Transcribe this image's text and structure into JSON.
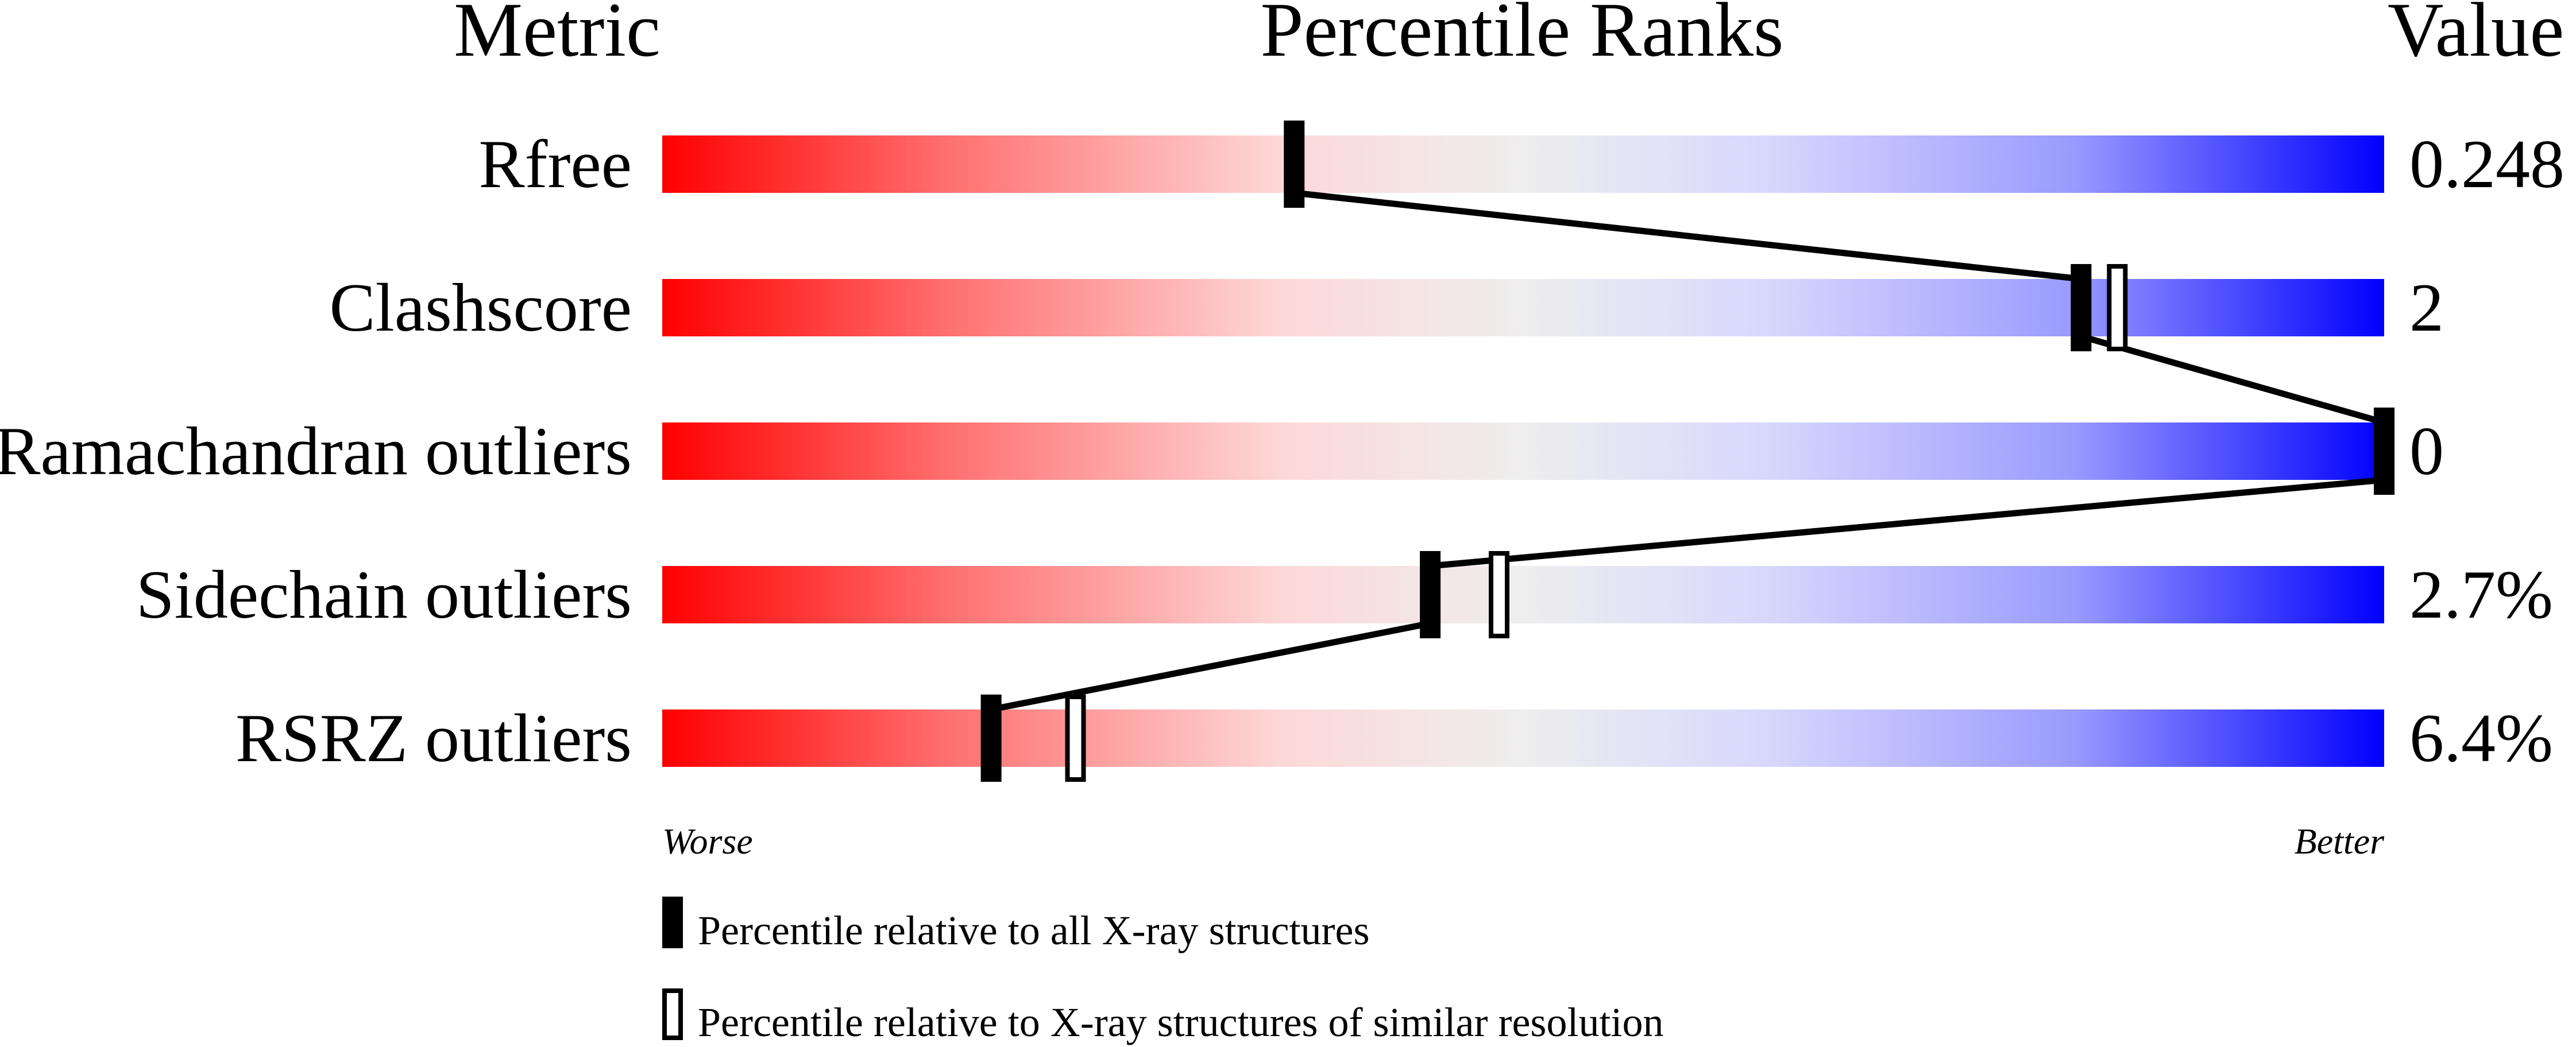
{
  "chart_data": {
    "type": "percentile-slider",
    "headers": {
      "metric": "Metric",
      "percentile": "Percentile Ranks",
      "value": "Value"
    },
    "xlim": [
      0,
      100
    ],
    "rows": [
      {
        "metric": "Rfree",
        "value": "0.248",
        "percentile_all": 36.7,
        "percentile_similar": null
      },
      {
        "metric": "Clashscore",
        "value": "2",
        "percentile_all": 82.4,
        "percentile_similar": 84.5
      },
      {
        "metric": "Ramachandran outliers",
        "value": "0",
        "percentile_all": 100,
        "percentile_similar": 100
      },
      {
        "metric": "Sidechain outliers",
        "value": "2.7%",
        "percentile_all": 44.6,
        "percentile_similar": 48.6
      },
      {
        "metric": "RSRZ outliers",
        "value": "6.4%",
        "percentile_all": 19.1,
        "percentile_similar": 24.0
      }
    ],
    "axis_labels": {
      "worse": "Worse",
      "better": "Better"
    },
    "legend": {
      "all": "Percentile relative to all X-ray structures",
      "similar": "Percentile relative to X-ray structures of similar resolution"
    },
    "colors": {
      "worse": "#ff0000",
      "middle": "#eeeeee",
      "better": "#0000ff",
      "marker": "#000000"
    }
  }
}
